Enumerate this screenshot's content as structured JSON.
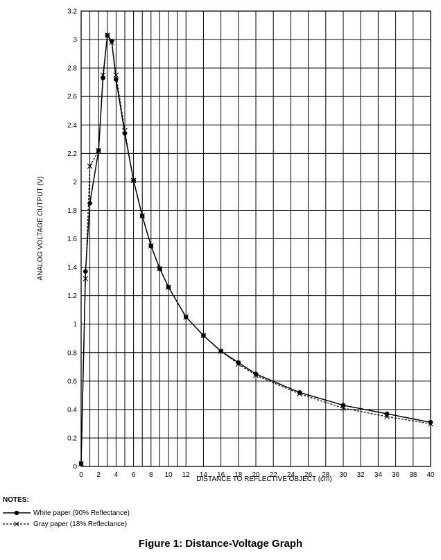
{
  "chart_data": {
    "type": "line",
    "xlabel": "DISTANCE TO REFLECTIVE OBJECT (cm)",
    "ylabel": "ANALOG VOLTAGE OUTPUT (V)",
    "xlim": [
      0,
      40
    ],
    "ylim": [
      0,
      3.2
    ],
    "grid": true,
    "x_minor_ticks": [
      1,
      3,
      5,
      7,
      9,
      11
    ],
    "x_ticks": [
      0,
      2,
      4,
      6,
      8,
      10,
      12,
      14,
      16,
      18,
      20,
      22,
      24,
      26,
      28,
      30,
      32,
      34,
      36,
      38,
      40
    ],
    "y_ticks": [
      0,
      0.2,
      0.4,
      0.6,
      0.8,
      1,
      1.2,
      1.4,
      1.6,
      1.8,
      2,
      2.2,
      2.4,
      2.6,
      2.8,
      3,
      3.2
    ],
    "x_tick_labels": [
      "0",
      "2",
      "4",
      "6",
      "8",
      "10",
      "12",
      "14",
      "16",
      "18",
      "20",
      "22",
      "24",
      "26",
      "28",
      "30",
      "32",
      "34",
      "36",
      "38",
      "40"
    ],
    "y_tick_labels": [
      "0",
      "0.2",
      "0.4",
      "0.6",
      "0.8",
      "1",
      "1.2",
      "1.4",
      "1.6",
      "1.8",
      "2",
      "2.2",
      "2.4",
      "2.6",
      "2.8",
      "3",
      "3.2"
    ],
    "series": [
      {
        "name": "White paper (90% Reflectance)",
        "style": "solid",
        "marker": "dot",
        "color": "#000000",
        "x": [
          0,
          0.5,
          1,
          2,
          2.5,
          3,
          3.5,
          4,
          5,
          6,
          7,
          8,
          9,
          10,
          12,
          14,
          16,
          18,
          20,
          25,
          30,
          35,
          40
        ],
        "y": [
          0.02,
          1.37,
          1.85,
          2.22,
          2.73,
          3.03,
          2.99,
          2.72,
          2.34,
          2.01,
          1.76,
          1.55,
          1.39,
          1.26,
          1.05,
          0.92,
          0.81,
          0.73,
          0.65,
          0.52,
          0.43,
          0.37,
          0.31
        ]
      },
      {
        "name": "Gray paper (18% Reflectance)",
        "style": "dashed",
        "marker": "x",
        "color": "#000000",
        "x": [
          0,
          0.5,
          1,
          2,
          2.5,
          3,
          3.5,
          4,
          5,
          6,
          7,
          8,
          9,
          10,
          12,
          14,
          16,
          18,
          20,
          25,
          30,
          35,
          40
        ],
        "y": [
          0.02,
          1.32,
          2.11,
          2.22,
          2.75,
          3.03,
          2.98,
          2.75,
          2.36,
          2.01,
          1.76,
          1.55,
          1.39,
          1.26,
          1.05,
          0.92,
          0.81,
          0.72,
          0.64,
          0.51,
          0.41,
          0.35,
          0.3
        ]
      }
    ]
  },
  "notes_title": "NOTES:",
  "legend": [
    {
      "label": "White paper (90% Reflectance)"
    },
    {
      "label": "Gray paper (18% Reflectance)"
    }
  ],
  "caption": "Figure 1: Distance-Voltage Graph"
}
